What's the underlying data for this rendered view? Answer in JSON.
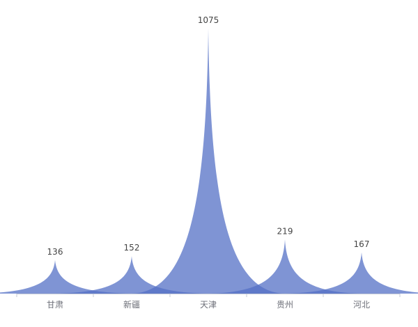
{
  "chart_data": {
    "type": "area",
    "style": "pictorial-peak",
    "categories": [
      "甘肃",
      "新疆",
      "天津",
      "贵州",
      "河北"
    ],
    "values": [
      136,
      152,
      1075,
      219,
      167
    ],
    "ylim": [
      0,
      1075
    ],
    "grid": false,
    "legend": "none",
    "color": "#5470c6",
    "title": "",
    "xlabel": "",
    "ylabel": ""
  }
}
